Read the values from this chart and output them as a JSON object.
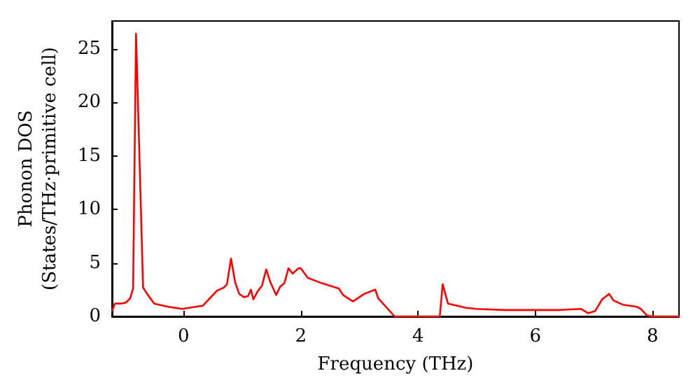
{
  "chart_data": {
    "type": "line",
    "xlabel": "Frequency (THz)",
    "ylabel": "Phonon DOS\n(States/THz·primitive cell)",
    "xlim": [
      -1.22,
      8.45
    ],
    "ylim": [
      0,
      27.6
    ],
    "xticks": [
      0,
      2,
      4,
      6,
      8
    ],
    "yticks": [
      0,
      5,
      10,
      15,
      20,
      25
    ],
    "grid": false,
    "marker": "none",
    "line_style": "solid",
    "series": [
      {
        "color": "#ff0000",
        "x": [
          -1.22,
          -1.17,
          -1.07,
          -0.98,
          -0.91,
          -0.86,
          -0.81,
          -0.69,
          -0.62,
          -0.5,
          -0.26,
          -0.02,
          0.21,
          0.33,
          0.45,
          0.57,
          0.69,
          0.74,
          0.81,
          0.88,
          0.95,
          1.03,
          1.1,
          1.15,
          1.19,
          1.26,
          1.34,
          1.41,
          1.48,
          1.58,
          1.65,
          1.72,
          1.79,
          1.86,
          1.96,
          2.0,
          2.12,
          2.36,
          2.65,
          2.72,
          2.89,
          3.08,
          3.27,
          3.32,
          3.6,
          4.37,
          4.42,
          4.51,
          4.82,
          4.99,
          5.47,
          6.42,
          6.78,
          6.9,
          7.02,
          7.14,
          7.26,
          7.33,
          7.49,
          7.73,
          7.8,
          7.9,
          8.0,
          8.45
        ],
        "values": [
          0.5,
          1.2,
          1.2,
          1.3,
          1.7,
          2.6,
          26.4,
          2.7,
          2.1,
          1.2,
          0.9,
          0.7,
          0.9,
          1.0,
          1.7,
          2.4,
          2.7,
          3.0,
          5.4,
          3.2,
          2.1,
          1.8,
          1.9,
          2.5,
          1.6,
          2.3,
          2.9,
          4.4,
          3.2,
          2.0,
          2.8,
          3.1,
          4.5,
          4.0,
          4.5,
          4.5,
          3.6,
          3.1,
          2.6,
          2.0,
          1.4,
          2.1,
          2.5,
          1.7,
          0,
          0,
          3.0,
          1.2,
          0.8,
          0.7,
          0.6,
          0.6,
          0.7,
          0.3,
          0.5,
          1.6,
          2.1,
          1.5,
          1.1,
          0.9,
          0.7,
          0.1,
          0,
          0
        ]
      }
    ]
  }
}
